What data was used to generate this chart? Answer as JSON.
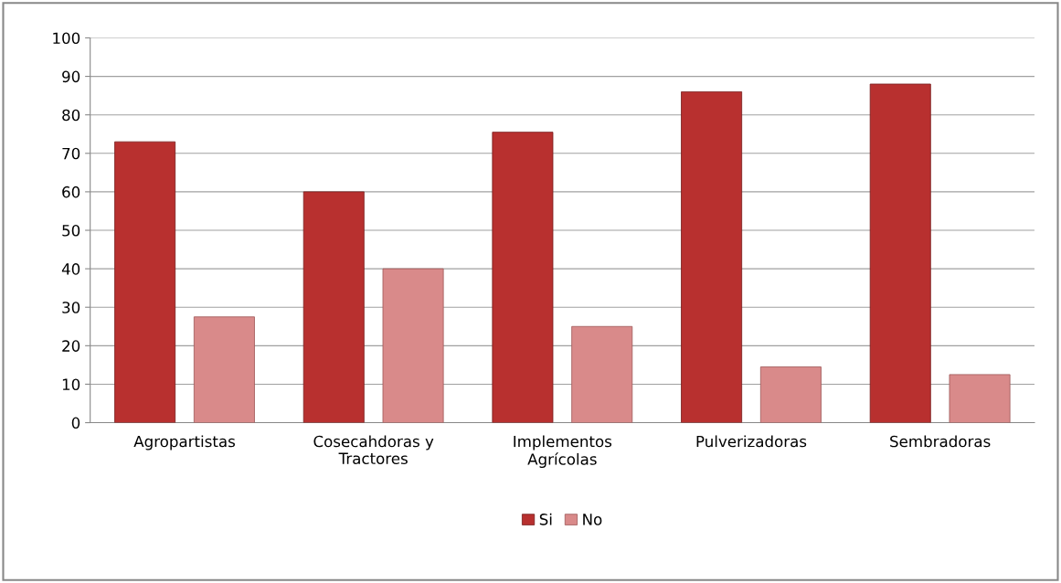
{
  "chart_data": {
    "type": "bar",
    "categories": [
      "Agropartistas",
      "Cosecahdoras y\nTractores",
      "Implementos\nAgrícolas",
      "Pulverizadoras",
      "Sembradoras"
    ],
    "series": [
      {
        "name": "Si",
        "color": "#b8302f",
        "values": [
          73,
          60,
          75.5,
          86,
          88
        ]
      },
      {
        "name": "No",
        "color": "#d98a8a",
        "values": [
          27.5,
          40,
          25,
          14.5,
          12.5
        ]
      }
    ],
    "ylim": [
      0,
      100
    ],
    "yticks": [
      0,
      10,
      20,
      30,
      40,
      50,
      60,
      70,
      80,
      90,
      100
    ],
    "grid": "y",
    "legend": "bottom"
  }
}
